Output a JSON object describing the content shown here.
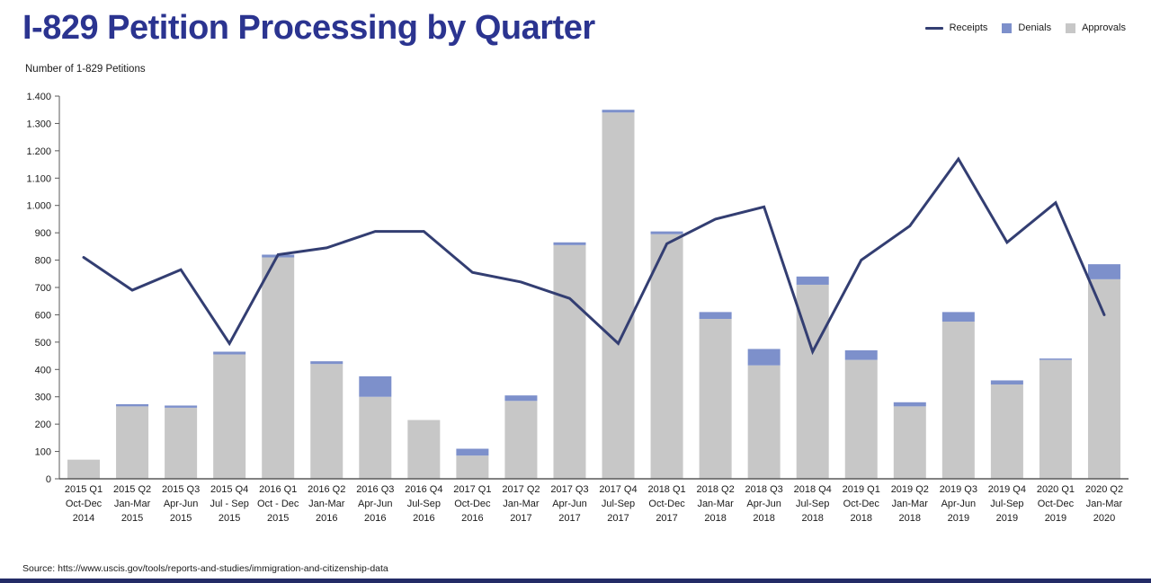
{
  "header": {
    "title": "I-829 Petition Processing by Quarter",
    "y_axis_title": "Number of 1-829 Petitions"
  },
  "source": "Source: htts://www.uscis.gov/tools/reports-and-studies/immigration-and-citizenship-data",
  "colors": {
    "title": "#2B3490",
    "receipts_line": "#333E72",
    "denials": "#7D90CB",
    "approvals": "#C7C7C7",
    "axis": "#595959",
    "tick_text": "#1a1a1a",
    "footer_bar": "#232B66"
  },
  "chart_data": {
    "type": "combo-bar-line",
    "title": "I-829 Petition Processing by Quarter",
    "ylabel": "Number of 1-829 Petitions",
    "ylim": [
      0,
      1400
    ],
    "y_tick_step": 100,
    "y_tick_labels": [
      "0",
      "100",
      "200",
      "300",
      "400",
      "500",
      "600",
      "700",
      "800",
      "900",
      "1.000",
      "1.100",
      "1.200",
      "1.300",
      "1.400"
    ],
    "grid": false,
    "legend_position": "top-right",
    "bar_stacking": "approvals-bottom-denials-top",
    "categories": [
      {
        "line1": "2015 Q1",
        "line2": "Oct-Dec",
        "line3": "2014"
      },
      {
        "line1": "2015 Q2",
        "line2": "Jan-Mar",
        "line3": "2015"
      },
      {
        "line1": "2015 Q3",
        "line2": "Apr-Jun",
        "line3": "2015"
      },
      {
        "line1": "2015 Q4",
        "line2": "Jul - Sep",
        "line3": "2015"
      },
      {
        "line1": "2016 Q1",
        "line2": "Oct - Dec",
        "line3": "2015"
      },
      {
        "line1": "2016 Q2",
        "line2": "Jan-Mar",
        "line3": "2016"
      },
      {
        "line1": "2016 Q3",
        "line2": "Apr-Jun",
        "line3": "2016"
      },
      {
        "line1": "2016 Q4",
        "line2": "Jul-Sep",
        "line3": "2016"
      },
      {
        "line1": "2017 Q1",
        "line2": "Oct-Dec",
        "line3": "2016"
      },
      {
        "line1": "2017 Q2",
        "line2": "Jan-Mar",
        "line3": "2017"
      },
      {
        "line1": "2017 Q3",
        "line2": "Apr-Jun",
        "line3": "2017"
      },
      {
        "line1": "2017 Q4",
        "line2": "Jul-Sep",
        "line3": "2017"
      },
      {
        "line1": "2018 Q1",
        "line2": "Oct-Dec",
        "line3": "2017"
      },
      {
        "line1": "2018 Q2",
        "line2": "Jan-Mar",
        "line3": "2018"
      },
      {
        "line1": "2018 Q3",
        "line2": "Apr-Jun",
        "line3": "2018"
      },
      {
        "line1": "2018 Q4",
        "line2": "Jul-Sep",
        "line3": "2018"
      },
      {
        "line1": "2019 Q1",
        "line2": "Oct-Dec",
        "line3": "2018"
      },
      {
        "line1": "2019 Q2",
        "line2": "Jan-Mar",
        "line3": "2018"
      },
      {
        "line1": "2019 Q3",
        "line2": "Apr-Jun",
        "line3": "2019"
      },
      {
        "line1": "2019 Q4",
        "line2": "Jul-Sep",
        "line3": "2019"
      },
      {
        "line1": "2020 Q1",
        "line2": "Oct-Dec",
        "line3": "2019"
      },
      {
        "line1": "2020 Q2",
        "line2": "Jan-Mar",
        "line3": "2020"
      }
    ],
    "series": [
      {
        "name": "Receipts",
        "type": "line",
        "color": "#333E72",
        "values": [
          810,
          690,
          765,
          495,
          820,
          845,
          905,
          905,
          755,
          720,
          660,
          495,
          860,
          950,
          995,
          465,
          800,
          925,
          1170,
          865,
          1010,
          600
        ]
      },
      {
        "name": "Denials",
        "type": "bar",
        "color": "#7D90CB",
        "values": [
          0,
          8,
          8,
          10,
          10,
          10,
          75,
          0,
          25,
          20,
          10,
          10,
          10,
          25,
          60,
          30,
          35,
          15,
          35,
          15,
          5,
          55
        ]
      },
      {
        "name": "Approvals",
        "type": "bar",
        "color": "#C7C7C7",
        "values": [
          70,
          265,
          260,
          455,
          810,
          420,
          300,
          215,
          85,
          285,
          855,
          1340,
          895,
          585,
          415,
          710,
          435,
          265,
          575,
          345,
          435,
          730
        ]
      }
    ]
  }
}
